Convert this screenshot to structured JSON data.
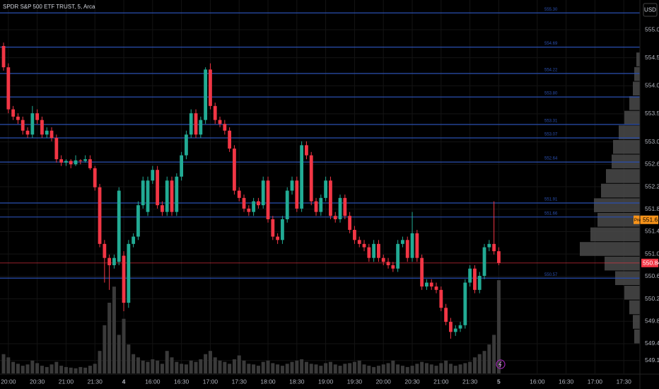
{
  "chart_data": {
    "type": "candlestick",
    "title": "SPDR S&P 500 ETF TRUST, 5, Arca",
    "currency": "USD",
    "up_color": "#22ab94",
    "down_color": "#f23645",
    "grid": true,
    "x": [
      0,
      1,
      2,
      3,
      4,
      5,
      6,
      7,
      8,
      9,
      10,
      11,
      12,
      13,
      14,
      15,
      16,
      17,
      18,
      19,
      20,
      21,
      22,
      23,
      24,
      25,
      26,
      27,
      28,
      29,
      30,
      31,
      32,
      33,
      34,
      35,
      36,
      37,
      38,
      39,
      40,
      41,
      42,
      43,
      44,
      45,
      46,
      47,
      48,
      49,
      50,
      51,
      52,
      53,
      54,
      55,
      56,
      57,
      58,
      59,
      60,
      61,
      62,
      63,
      64,
      65,
      66,
      67,
      68,
      69,
      70,
      71,
      72,
      73,
      74,
      75,
      76,
      77,
      78,
      79,
      80,
      81,
      82,
      83,
      84,
      85,
      86,
      87,
      88,
      89,
      90,
      91,
      92,
      93,
      94,
      95,
      96,
      97,
      98,
      99,
      100,
      101,
      102,
      103
    ],
    "open": [
      554.71,
      554.33,
      553.58,
      553.45,
      553.39,
      553.2,
      553.13,
      553.51,
      553.39,
      553.13,
      553.2,
      553.07,
      552.69,
      552.63,
      552.66,
      552.6,
      552.67,
      552.66,
      552.69,
      552.53,
      552.19,
      551.18,
      550.93,
      550.8,
      550.86,
      550.97,
      550.13,
      551.18,
      551.31,
      551.87,
      551.75,
      552.31,
      552.5,
      551.87,
      551.75,
      552.31,
      551.75,
      552.38,
      552.76,
      553.13,
      553.51,
      553.13,
      553.39,
      554.29,
      553.64,
      553.39,
      553.32,
      553.2,
      552.88,
      552.13,
      552.0,
      551.81,
      551.75,
      551.94,
      551.87,
      552.31,
      551.62,
      551.31,
      551.25,
      551.62,
      552.13,
      552.31,
      551.81,
      552.94,
      552.76,
      551.94,
      551.75,
      552.0,
      552.31,
      551.68,
      551.62,
      552.0,
      551.68,
      551.43,
      551.25,
      551.18,
      551.12,
      550.93,
      551.18,
      550.93,
      550.86,
      550.8,
      550.74,
      551.18,
      551.25,
      550.93,
      551.37,
      550.93,
      550.42,
      550.49,
      550.42,
      550.36,
      550.04,
      549.79,
      549.61,
      549.67,
      549.73,
      550.49,
      550.74,
      550.36,
      550.61,
      551.12,
      551.18,
      551.05
    ],
    "high": [
      554.77,
      554.4,
      553.64,
      553.51,
      553.45,
      553.26,
      553.64,
      553.58,
      553.45,
      553.26,
      553.26,
      553.13,
      552.76,
      552.69,
      552.69,
      552.76,
      552.69,
      552.76,
      552.76,
      552.57,
      552.25,
      551.25,
      550.99,
      550.99,
      552.19,
      551.05,
      551.25,
      551.37,
      551.94,
      552.38,
      552.38,
      552.57,
      552.57,
      551.94,
      552.38,
      552.38,
      552.44,
      552.82,
      553.2,
      553.58,
      553.58,
      553.45,
      554.33,
      554.4,
      553.7,
      553.45,
      553.39,
      553.26,
      552.94,
      552.19,
      552.06,
      551.87,
      552.0,
      552.0,
      552.38,
      552.38,
      551.68,
      551.37,
      551.68,
      552.19,
      552.38,
      552.38,
      553.01,
      553.01,
      552.82,
      552.0,
      552.06,
      552.38,
      552.38,
      551.75,
      552.06,
      552.06,
      551.75,
      551.5,
      551.31,
      551.25,
      551.18,
      551.25,
      551.25,
      550.99,
      550.93,
      550.86,
      551.25,
      551.31,
      551.31,
      551.75,
      551.43,
      550.99,
      550.55,
      550.55,
      550.49,
      550.42,
      550.11,
      549.86,
      549.73,
      549.79,
      550.55,
      550.8,
      550.8,
      550.68,
      551.18,
      551.25,
      551.94,
      551.12
    ],
    "low": [
      554.27,
      553.51,
      553.39,
      553.32,
      553.13,
      553.07,
      553.07,
      553.32,
      553.07,
      553.07,
      553.01,
      552.63,
      552.57,
      552.57,
      552.53,
      552.57,
      552.6,
      552.63,
      552.5,
      552.13,
      551.12,
      550.49,
      550.36,
      550.74,
      550.8,
      549.98,
      550.04,
      551.12,
      551.25,
      551.81,
      551.68,
      552.25,
      551.81,
      551.68,
      551.68,
      551.68,
      551.68,
      552.31,
      552.69,
      553.07,
      553.07,
      553.07,
      553.32,
      553.58,
      553.32,
      553.26,
      553.13,
      552.82,
      552.06,
      551.94,
      551.75,
      551.68,
      551.68,
      551.81,
      551.81,
      551.56,
      551.25,
      551.18,
      551.18,
      551.56,
      552.06,
      551.75,
      551.75,
      552.69,
      551.87,
      551.68,
      551.68,
      551.94,
      551.62,
      551.56,
      551.56,
      551.62,
      551.37,
      551.18,
      551.12,
      551.05,
      550.86,
      550.86,
      550.86,
      550.8,
      550.74,
      550.68,
      550.68,
      551.12,
      550.86,
      550.86,
      550.86,
      550.36,
      550.36,
      550.36,
      550.3,
      549.98,
      549.73,
      549.49,
      549.54,
      549.61,
      549.67,
      550.42,
      550.3,
      550.3,
      550.55,
      551.05,
      550.99,
      550.8
    ],
    "close": [
      554.33,
      553.58,
      553.45,
      553.39,
      553.2,
      553.13,
      553.51,
      553.39,
      553.13,
      553.2,
      553.07,
      552.69,
      552.63,
      552.66,
      552.6,
      552.67,
      552.66,
      552.69,
      552.53,
      552.19,
      551.18,
      550.93,
      550.8,
      550.93,
      552.13,
      550.13,
      551.18,
      551.31,
      551.87,
      552.31,
      552.31,
      552.5,
      551.87,
      551.75,
      552.31,
      551.75,
      552.38,
      552.76,
      553.13,
      553.51,
      553.13,
      553.39,
      554.29,
      553.64,
      553.39,
      553.32,
      553.2,
      552.88,
      552.13,
      552.0,
      551.81,
      551.75,
      551.94,
      551.87,
      552.31,
      551.62,
      551.31,
      551.25,
      551.62,
      552.13,
      552.31,
      551.81,
      552.94,
      552.76,
      551.94,
      551.75,
      552.0,
      552.31,
      551.68,
      551.62,
      552.0,
      551.68,
      551.43,
      551.25,
      551.18,
      551.12,
      550.93,
      551.18,
      550.93,
      550.86,
      550.8,
      550.74,
      551.18,
      551.25,
      550.93,
      551.37,
      550.93,
      550.42,
      550.49,
      550.42,
      550.36,
      550.04,
      549.79,
      549.61,
      549.67,
      549.73,
      550.49,
      550.74,
      550.36,
      550.61,
      551.12,
      551.18,
      551.05,
      550.84
    ],
    "volume": {
      "color": "#3a3a3a",
      "y2lim": [
        0,
        165
      ],
      "values": [
        30,
        25,
        18,
        15,
        12,
        14,
        20,
        16,
        12,
        10,
        14,
        18,
        12,
        10,
        9,
        8,
        10,
        9,
        12,
        15,
        35,
        75,
        110,
        135,
        60,
        85,
        45,
        30,
        25,
        20,
        18,
        22,
        20,
        15,
        35,
        25,
        18,
        15,
        14,
        20,
        18,
        22,
        30,
        35,
        25,
        20,
        18,
        15,
        22,
        28,
        20,
        15,
        14,
        12,
        18,
        20,
        16,
        14,
        12,
        15,
        18,
        20,
        22,
        18,
        15,
        14,
        12,
        16,
        18,
        14,
        12,
        15,
        16,
        18,
        20,
        14,
        12,
        10,
        12,
        14,
        16,
        20,
        14,
        12,
        10,
        12,
        15,
        18,
        16,
        14,
        12,
        16,
        20,
        15,
        12,
        14,
        16,
        18,
        25,
        30,
        35,
        45,
        60,
        145
      ]
    },
    "xlim": [
      -0.74,
      132.35
    ],
    "xticks": [
      {
        "value": 1,
        "label": "20:00"
      },
      {
        "value": 7,
        "label": "20:30"
      },
      {
        "value": 13,
        "label": "21:00"
      },
      {
        "value": 19,
        "label": "21:30"
      },
      {
        "value": 25,
        "label": "4"
      },
      {
        "value": 31,
        "label": "16:00"
      },
      {
        "value": 37,
        "label": "16:30"
      },
      {
        "value": 43,
        "label": "17:00"
      },
      {
        "value": 49,
        "label": "17:30"
      },
      {
        "value": 55,
        "label": "18:00"
      },
      {
        "value": 61,
        "label": "18:30"
      },
      {
        "value": 67,
        "label": "19:00"
      },
      {
        "value": 73,
        "label": "19:30"
      },
      {
        "value": 79,
        "label": "20:00"
      },
      {
        "value": 85,
        "label": "20:30"
      },
      {
        "value": 91,
        "label": "21:00"
      },
      {
        "value": 97,
        "label": "21:30"
      },
      {
        "value": 103,
        "label": "5"
      },
      {
        "value": 111,
        "label": "16:00"
      },
      {
        "value": 117,
        "label": "16:30"
      },
      {
        "value": 123,
        "label": "17:00"
      },
      {
        "value": 129,
        "label": "17:30"
      }
    ],
    "ylim": [
      548.87,
      555.53
    ],
    "yticks": [
      {
        "value": 555,
        "label": "555.00"
      },
      {
        "value": 554.5,
        "label": "554.50"
      },
      {
        "value": 554,
        "label": "554.00"
      },
      {
        "value": 553.5,
        "label": "553.50"
      },
      {
        "value": 553,
        "label": "553.00"
      },
      {
        "value": 552.6,
        "label": "552.60"
      },
      {
        "value": 552.2,
        "label": "552.20"
      },
      {
        "value": 551.8,
        "label": "551.80"
      },
      {
        "value": 551.4,
        "label": "551.40"
      },
      {
        "value": 551,
        "label": "551.00"
      },
      {
        "value": 550.6,
        "label": "550.60"
      },
      {
        "value": 550.2,
        "label": "550.20"
      },
      {
        "value": 549.8,
        "label": "549.80"
      },
      {
        "value": 549.4,
        "label": "549.40"
      },
      {
        "value": 549.1,
        "label": "549.10"
      }
    ],
    "level_color": "#2a4fb0",
    "levels": [
      {
        "value": 555.3,
        "label": "555.30"
      },
      {
        "value": 554.69,
        "label": "554.69"
      },
      {
        "value": 554.22,
        "label": "554.22"
      },
      {
        "value": 553.8,
        "label": "553.80"
      },
      {
        "value": 553.31,
        "label": "553.31"
      },
      {
        "value": 553.07,
        "label": "553.07"
      },
      {
        "value": 552.64,
        "label": "552.64"
      },
      {
        "value": 551.91,
        "label": "551.91"
      },
      {
        "value": 551.66,
        "label": "551.66"
      },
      {
        "value": 550.57,
        "label": "550.57"
      }
    ],
    "last_price": {
      "value": 550.84,
      "label": "550.84",
      "color": "#f23645"
    },
    "premarket": {
      "value": 551.61,
      "label": "551.61",
      "tag": "Pre",
      "color": "#f7931a"
    },
    "profile": {
      "color": "#4a4a4a",
      "xlim": [
        0,
        100
      ],
      "bins": [
        549.4,
        549.66,
        549.92,
        550.18,
        550.44,
        550.7,
        550.96,
        551.22,
        551.48,
        551.74,
        552.0,
        552.26,
        552.52,
        552.78,
        553.04,
        553.3,
        553.56,
        553.82,
        554.08,
        554.34,
        554.6
      ],
      "values": [
        8,
        10,
        15,
        22,
        35,
        50,
        85,
        70,
        60,
        65,
        55,
        48,
        40,
        38,
        30,
        22,
        15,
        10,
        8,
        5
      ]
    }
  }
}
